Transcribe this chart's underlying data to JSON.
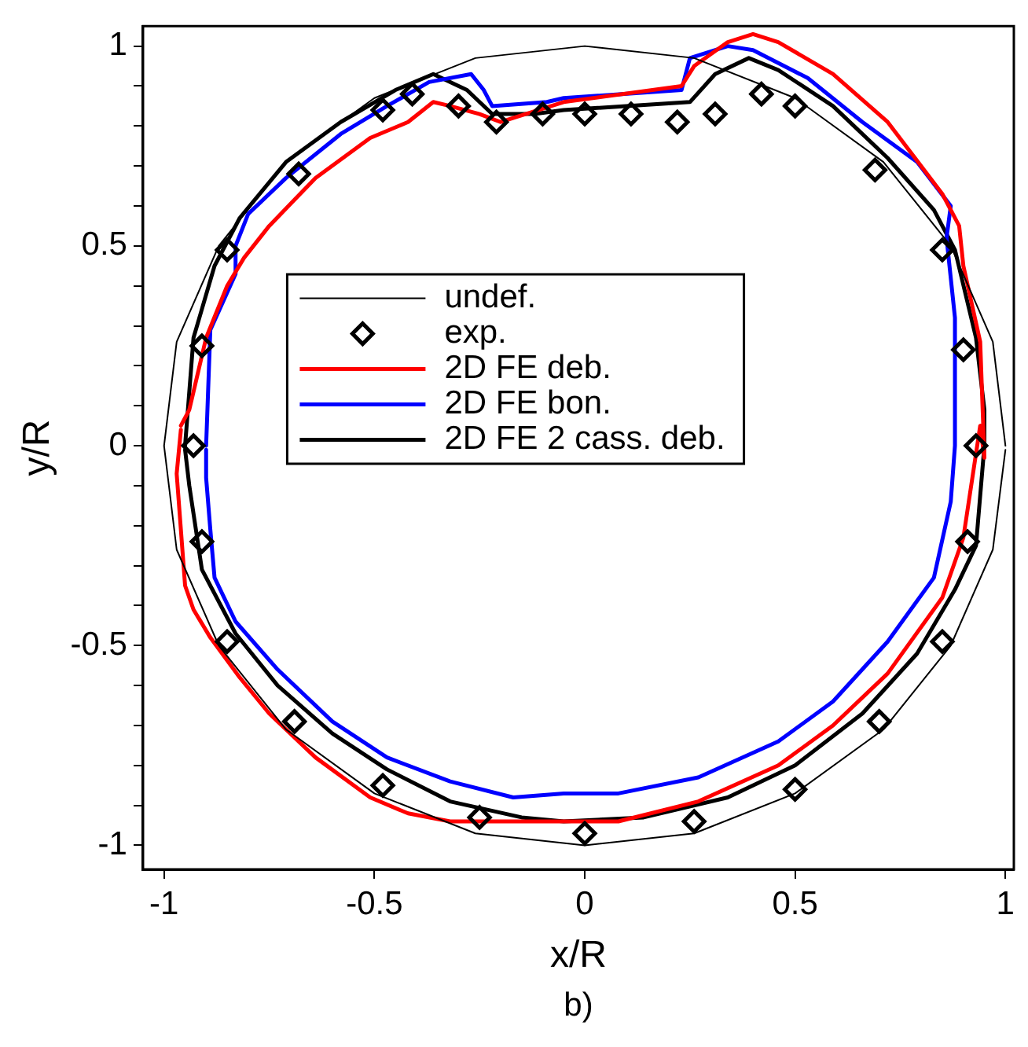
{
  "chart_data": {
    "type": "line",
    "xlabel": "x/R",
    "ylabel": "y/R",
    "annotations": [
      "b)"
    ],
    "xlim": [
      -1.05,
      1.02
    ],
    "ylim": [
      -1.06,
      1.05
    ],
    "xticks": [
      -1,
      -0.5,
      0,
      0.5,
      1
    ],
    "yticks": [
      -1,
      {
        "value": -0.9,
        "label": null
      },
      {
        "value": -0.8,
        "label": null
      },
      {
        "value": -0.7,
        "label": null
      },
      {
        "value": -0.6,
        "label": null
      },
      -0.5,
      {
        "value": -0.4,
        "label": null
      },
      {
        "value": -0.3,
        "label": null
      },
      {
        "value": -0.2,
        "label": null
      },
      {
        "value": -0.1,
        "label": null
      },
      0,
      {
        "value": 0.1,
        "label": null
      },
      {
        "value": 0.2,
        "label": null
      },
      {
        "value": 0.3,
        "label": null
      },
      {
        "value": 0.4,
        "label": null
      },
      0.5,
      {
        "value": 0.6,
        "label": null
      },
      {
        "value": 0.7,
        "label": null
      },
      {
        "value": 0.8,
        "label": null
      },
      {
        "value": 0.9,
        "label": null
      },
      1
    ],
    "grid": false,
    "legend": "center",
    "series": [
      {
        "name": "undef.",
        "color": "#000000",
        "x": [
          1,
          0.97,
          0.87,
          0.71,
          0.5,
          0.26,
          0,
          -0.26,
          -0.5,
          -0.71,
          -0.87,
          -0.97,
          -1,
          -0.97,
          -0.87,
          -0.71,
          -0.5,
          -0.26,
          0,
          0.26,
          0.5,
          0.71,
          0.87,
          0.97,
          1
        ],
        "values": [
          0,
          0.26,
          0.5,
          0.71,
          0.87,
          0.97,
          1,
          0.97,
          0.87,
          0.71,
          0.5,
          0.26,
          0,
          -0.26,
          -0.5,
          -0.71,
          -0.87,
          -0.97,
          -1,
          -0.97,
          -0.87,
          -0.71,
          -0.5,
          -0.26,
          -0.01
        ]
      },
      {
        "name": "exp.",
        "type": "scatter",
        "marker": "diamond",
        "color": "#000000",
        "x": [
          -0.93,
          -0.91,
          -0.85,
          -0.68,
          -0.48,
          -0.41,
          -0.3,
          -0.21,
          -0.1,
          0,
          0.11,
          0.22,
          0.31,
          0.42,
          0.5,
          0.69,
          0.85,
          0.9,
          0.93,
          0.91,
          0.85,
          0.7,
          0.5,
          0.26,
          0,
          -0.25,
          -0.48,
          -0.69,
          -0.85,
          -0.91
        ],
        "values": [
          0,
          0.25,
          0.49,
          0.68,
          0.84,
          0.88,
          0.85,
          0.81,
          0.83,
          0.83,
          0.83,
          0.81,
          0.83,
          0.88,
          0.85,
          0.69,
          0.49,
          0.24,
          0,
          -0.24,
          -0.49,
          -0.69,
          -0.86,
          -0.94,
          -0.97,
          -0.93,
          -0.85,
          -0.69,
          -0.49,
          -0.24
        ]
      },
      {
        "name": "2D FE deb.",
        "color": "#ff0000",
        "x": [
          -0.96,
          -0.94,
          -0.9,
          -0.85,
          -0.81,
          -0.75,
          -0.64,
          -0.51,
          -0.42,
          -0.36,
          -0.32,
          -0.25,
          -0.2,
          -0.05,
          0.23,
          0.26,
          0.34,
          0.4,
          0.46,
          0.59,
          0.72,
          0.85,
          0.89,
          0.9,
          0.94,
          0.95,
          0.94,
          0.9,
          0.85,
          0.72,
          0.59,
          0.46,
          0.27,
          0.08,
          -0.05,
          -0.32,
          -0.42,
          -0.51,
          -0.64,
          -0.75,
          -0.82,
          -0.89,
          -0.93,
          -0.95,
          -0.97,
          -0.96
        ],
        "values": [
          0.05,
          0.09,
          0.27,
          0.4,
          0.47,
          0.55,
          0.67,
          0.77,
          0.81,
          0.86,
          0.85,
          0.83,
          0.81,
          0.86,
          0.9,
          0.95,
          1.01,
          1.03,
          1.01,
          0.93,
          0.81,
          0.63,
          0.55,
          0.45,
          0.26,
          -0.03,
          0.05,
          -0.23,
          -0.38,
          -0.57,
          -0.7,
          -0.8,
          -0.89,
          -0.94,
          -0.94,
          -0.94,
          -0.92,
          -0.88,
          -0.78,
          -0.67,
          -0.58,
          -0.48,
          -0.41,
          -0.35,
          -0.07,
          0.04
        ]
      },
      {
        "name": "2D FE bon.",
        "color": "#0000ff",
        "x": [
          -0.9,
          -0.89,
          -0.83,
          -0.83,
          -0.8,
          -0.71,
          -0.58,
          -0.47,
          -0.37,
          -0.27,
          -0.24,
          -0.22,
          -0.09,
          -0.05,
          0.23,
          0.25,
          0.34,
          0.4,
          0.53,
          0.66,
          0.79,
          0.87,
          0.86,
          0.88,
          0.88,
          0.87,
          0.83,
          0.72,
          0.59,
          0.46,
          0.27,
          0.08,
          -0.05,
          -0.17,
          -0.32,
          -0.47,
          -0.6,
          -0.73,
          -0.83,
          -0.88,
          -0.89,
          -0.9,
          -0.9
        ],
        "values": [
          0,
          0.29,
          0.43,
          0.5,
          0.58,
          0.67,
          0.78,
          0.85,
          0.91,
          0.93,
          0.89,
          0.85,
          0.86,
          0.87,
          0.89,
          0.97,
          1,
          0.99,
          0.92,
          0.81,
          0.71,
          0.6,
          0.52,
          0.32,
          0,
          -0.14,
          -0.33,
          -0.49,
          -0.64,
          -0.74,
          -0.83,
          -0.87,
          -0.87,
          -0.88,
          -0.84,
          -0.78,
          -0.69,
          -0.56,
          -0.44,
          -0.33,
          -0.21,
          -0.08,
          -0.01
        ]
      },
      {
        "name": "2D FE 2 cass. deb.",
        "color": "#000000",
        "x": [
          -0.95,
          -0.93,
          -0.88,
          -0.82,
          -0.71,
          -0.58,
          -0.45,
          -0.36,
          -0.28,
          -0.22,
          -0.12,
          -0.05,
          0.25,
          0.31,
          0.39,
          0.46,
          0.59,
          0.72,
          0.83,
          0.88,
          0.93,
          0.95,
          0.95,
          0.93,
          0.88,
          0.79,
          0.66,
          0.5,
          0.34,
          0.14,
          -0.05,
          -0.15,
          -0.32,
          -0.47,
          -0.6,
          -0.73,
          -0.83,
          -0.91,
          -0.94,
          -0.95
        ],
        "values": [
          0,
          0.27,
          0.45,
          0.57,
          0.71,
          0.81,
          0.89,
          0.93,
          0.89,
          0.83,
          0.83,
          0.84,
          0.86,
          0.93,
          0.97,
          0.94,
          0.85,
          0.72,
          0.59,
          0.49,
          0.27,
          0.09,
          0,
          -0.25,
          -0.36,
          -0.52,
          -0.67,
          -0.8,
          -0.88,
          -0.93,
          -0.94,
          -0.93,
          -0.89,
          -0.81,
          -0.72,
          -0.6,
          -0.47,
          -0.31,
          -0.1,
          -0.01
        ]
      }
    ]
  }
}
